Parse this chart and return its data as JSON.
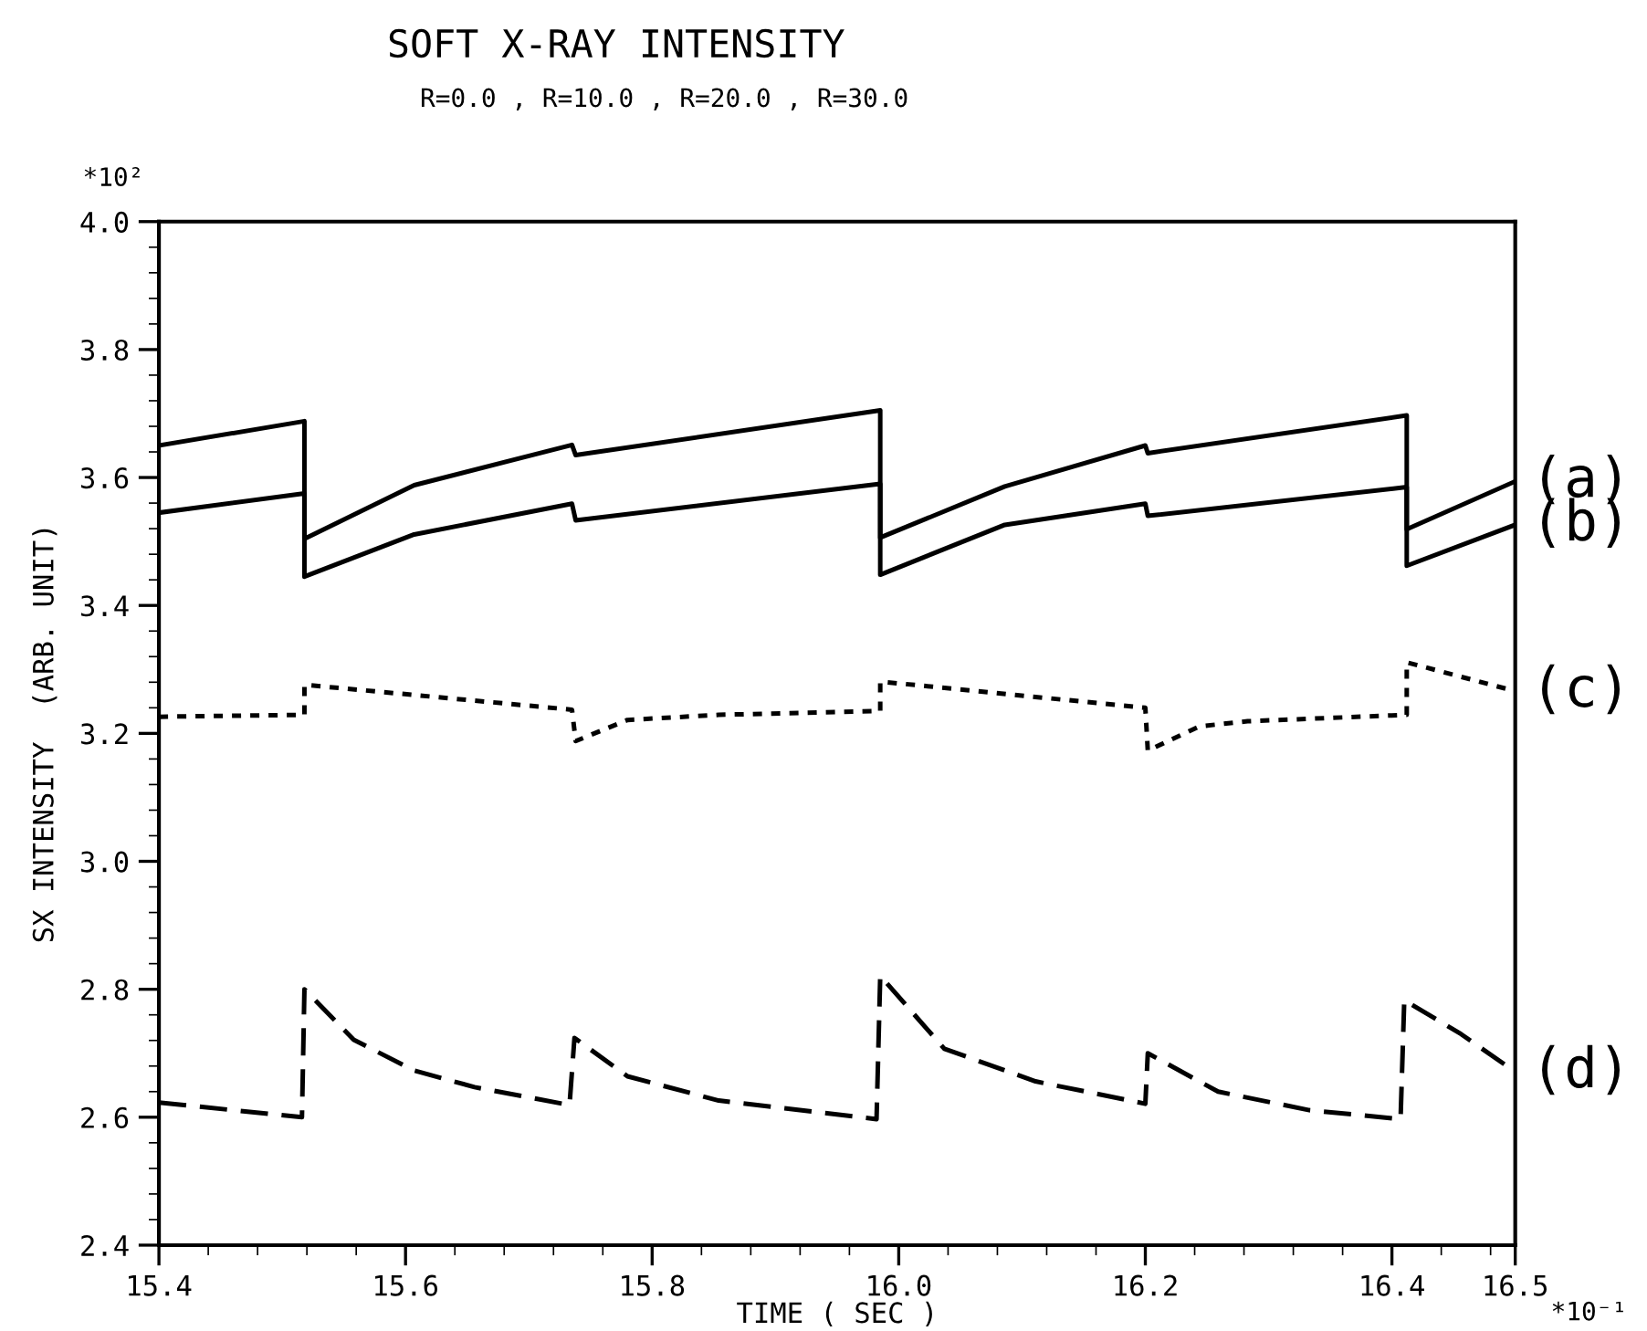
{
  "chart_data": {
    "type": "line",
    "title": "SOFT X-RAY INTENSITY",
    "subtitle": "R=0.0 , R=10.0 , R=20.0 , R=30.0",
    "xlabel": "TIME ( SEC )",
    "ylabel": "SX INTENSITY  (ARB. UNIT)",
    "annotations": [
      "*10²",
      "*10⁻¹"
    ],
    "xlim": [
      15.4,
      16.5
    ],
    "xticks": [
      15.4,
      15.6,
      15.8,
      {
        "value": 16.0,
        "label": "16.0"
      },
      16.2,
      16.4,
      16.5
    ],
    "ylim": [
      2.4,
      4.0
    ],
    "yticks": [
      2.4,
      2.6,
      2.8,
      {
        "value": 3.0,
        "label": "3.0"
      },
      3.2,
      3.4,
      3.6,
      3.8,
      {
        "value": 4.0,
        "label": "4.0"
      }
    ],
    "grid": false,
    "legend": false,
    "marker": "none",
    "series": [
      {
        "name": "(a)",
        "color": "#000000",
        "line_style": "solid",
        "x": [
          15.4,
          15.518,
          15.518,
          15.607,
          15.735,
          15.738,
          15.985,
          15.985,
          16.086,
          16.2,
          16.202,
          16.412,
          16.412,
          16.5
        ],
        "values": [
          3.65,
          3.688,
          3.504,
          3.588,
          3.651,
          3.635,
          3.705,
          3.506,
          3.586,
          3.65,
          3.638,
          3.697,
          3.519,
          3.594
        ]
      },
      {
        "name": "(b)",
        "color": "#000000",
        "line_style": "solid",
        "x": [
          15.4,
          15.518,
          15.518,
          15.607,
          15.735,
          15.738,
          15.985,
          15.985,
          16.086,
          16.2,
          16.202,
          16.412,
          16.412,
          16.5
        ],
        "values": [
          3.545,
          3.575,
          3.445,
          3.511,
          3.559,
          3.533,
          3.59,
          3.448,
          3.526,
          3.559,
          3.54,
          3.585,
          3.462,
          3.526
        ]
      },
      {
        "name": "(c)",
        "color": "#000000",
        "line_style": "dotted",
        "x": [
          15.4,
          15.518,
          15.518,
          15.735,
          15.738,
          15.78,
          15.854,
          15.985,
          15.985,
          16.2,
          16.202,
          16.244,
          16.283,
          16.412,
          16.412,
          16.5
        ],
        "values": [
          3.226,
          3.229,
          3.276,
          3.237,
          3.188,
          3.221,
          3.229,
          3.235,
          3.281,
          3.24,
          3.173,
          3.211,
          3.219,
          3.229,
          3.311,
          3.266
        ]
      },
      {
        "name": "(d)",
        "color": "#000000",
        "line_style": "dashed",
        "x": [
          15.4,
          15.516,
          15.518,
          15.558,
          15.607,
          15.656,
          15.733,
          15.737,
          15.78,
          15.854,
          15.982,
          15.985,
          16.037,
          16.111,
          16.2,
          16.202,
          16.259,
          16.333,
          16.407,
          16.41,
          16.456,
          16.5
        ],
        "values": [
          2.623,
          2.6,
          2.8,
          2.721,
          2.673,
          2.647,
          2.619,
          2.724,
          2.664,
          2.626,
          2.597,
          2.821,
          2.707,
          2.656,
          2.621,
          2.7,
          2.64,
          2.611,
          2.597,
          2.783,
          2.73,
          2.671
        ]
      }
    ]
  }
}
